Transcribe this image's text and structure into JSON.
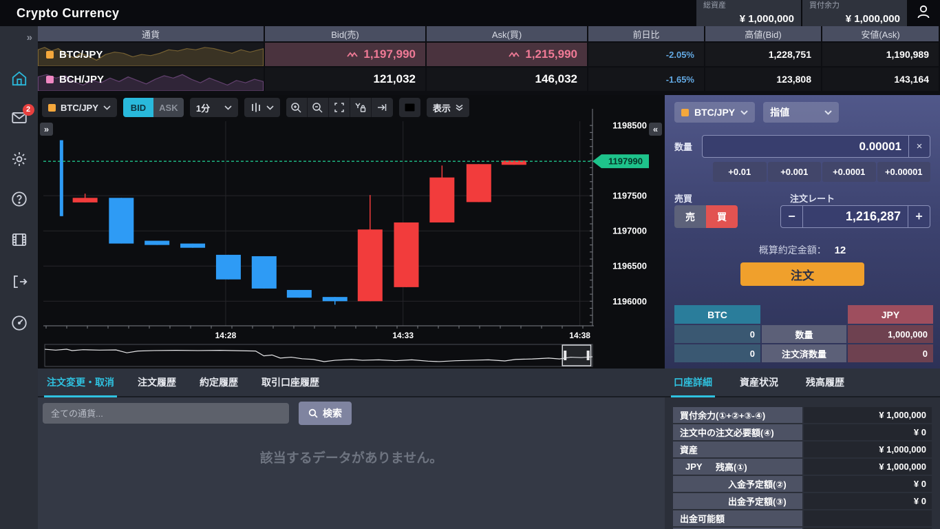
{
  "header": {
    "logo": "Crypto Currency",
    "stats": [
      {
        "label": "総資産",
        "value": "¥ 1,000,000"
      },
      {
        "label": "買付余力",
        "value": "¥ 1,000,000"
      }
    ]
  },
  "sidebar": {
    "collapse_icon": "»",
    "mail_badge": "2"
  },
  "quote_table": {
    "columns": [
      "通貨",
      "Bid(売)",
      "Ask(買)",
      "前日比",
      "高値(Bid)",
      "安値(Ask)"
    ],
    "rows": [
      {
        "pair": "BTC/JPY",
        "swatch": "#f5a83c",
        "bid": "1,197,990",
        "ask": "1,215,990",
        "change": "-2.05%",
        "high": "1,228,751",
        "low": "1,190,989"
      },
      {
        "pair": "BCH/JPY",
        "swatch": "#ef87c2",
        "bid": "121,032",
        "ask": "146,032",
        "change": "-1.65%",
        "high": "123,808",
        "low": "143,164"
      }
    ]
  },
  "chart_toolbar": {
    "pair": "BTC/JPY",
    "bid_label": "BID",
    "ask_label": "ASK",
    "interval": "1分",
    "display_label": "表示",
    "expand_icon": "»",
    "collapse_icon": "«"
  },
  "chart_data": {
    "type": "candlestick",
    "pair": "BTC/JPY",
    "interval": "1分",
    "last_price": 1197990,
    "last_price_label": "1197990",
    "y_ticks": [
      1198500,
      1197500,
      1197000,
      1196500,
      1196000
    ],
    "y_range": [
      1195650,
      1198560
    ],
    "x_labels": [
      {
        "label": "14:28",
        "pos": 0.332
      },
      {
        "label": "14:33",
        "pos": 0.655
      },
      {
        "label": "14:38",
        "pos": 0.977
      }
    ],
    "up_color": "#f23c3c",
    "down_color": "#2e9bf5",
    "accent_green": "#1ec38b",
    "candles": [
      {
        "x": 0.033,
        "top": 1198290,
        "bottom": 1197210,
        "high": 1198290,
        "low": 1197210,
        "dir": "down",
        "thin": true
      },
      {
        "x": 0.076,
        "top": 1197470,
        "bottom": 1197405,
        "high": 1197530,
        "low": 1197405,
        "dir": "up"
      },
      {
        "x": 0.142,
        "top": 1197470,
        "bottom": 1196820,
        "high": 1197470,
        "low": 1196820,
        "dir": "down"
      },
      {
        "x": 0.207,
        "top": 1196860,
        "bottom": 1196800,
        "high": 1196860,
        "low": 1196800,
        "dir": "down"
      },
      {
        "x": 0.272,
        "top": 1196820,
        "bottom": 1196760,
        "high": 1196820,
        "low": 1196760,
        "dir": "down"
      },
      {
        "x": 0.337,
        "top": 1196660,
        "bottom": 1196310,
        "high": 1196660,
        "low": 1196310,
        "dir": "down"
      },
      {
        "x": 0.402,
        "top": 1196640,
        "bottom": 1196180,
        "high": 1196640,
        "low": 1196180,
        "dir": "down"
      },
      {
        "x": 0.466,
        "top": 1196160,
        "bottom": 1196050,
        "high": 1196160,
        "low": 1196050,
        "dir": "down"
      },
      {
        "x": 0.531,
        "top": 1196060,
        "bottom": 1196000,
        "high": 1196060,
        "low": 1195950,
        "dir": "down"
      },
      {
        "x": 0.595,
        "top": 1197020,
        "bottom": 1196000,
        "high": 1197510,
        "low": 1196000,
        "dir": "up"
      },
      {
        "x": 0.661,
        "top": 1197120,
        "bottom": 1196200,
        "high": 1197120,
        "low": 1196200,
        "dir": "up"
      },
      {
        "x": 0.726,
        "top": 1197760,
        "bottom": 1197120,
        "high": 1197930,
        "low": 1197120,
        "dir": "up"
      },
      {
        "x": 0.793,
        "top": 1197950,
        "bottom": 1197410,
        "high": 1197950,
        "low": 1197410,
        "dir": "up"
      },
      {
        "x": 0.857,
        "top": 1198000,
        "bottom": 1197940,
        "high": 1198000,
        "low": 1197940,
        "dir": "up"
      }
    ],
    "navigator": {
      "points": [
        [
          0,
          0.22
        ],
        [
          0.02,
          0.26
        ],
        [
          0.04,
          0.22
        ],
        [
          0.05,
          0.28
        ],
        [
          0.07,
          0.24
        ],
        [
          0.1,
          0.26
        ],
        [
          0.13,
          0.25
        ],
        [
          0.15,
          0.38
        ],
        [
          0.17,
          0.3
        ],
        [
          0.2,
          0.28
        ],
        [
          0.24,
          0.27
        ],
        [
          0.28,
          0.28
        ],
        [
          0.32,
          0.27
        ],
        [
          0.36,
          0.29
        ],
        [
          0.385,
          0.3
        ],
        [
          0.4,
          0.52
        ],
        [
          0.415,
          0.48
        ],
        [
          0.43,
          0.62
        ],
        [
          0.45,
          0.58
        ],
        [
          0.47,
          0.65
        ],
        [
          0.49,
          0.68
        ],
        [
          0.51,
          0.78
        ],
        [
          0.53,
          0.72
        ],
        [
          0.56,
          0.68
        ],
        [
          0.58,
          0.72
        ],
        [
          0.61,
          0.7
        ],
        [
          0.64,
          0.74
        ],
        [
          0.67,
          0.7
        ],
        [
          0.7,
          0.76
        ],
        [
          0.72,
          0.78
        ],
        [
          0.75,
          0.74
        ],
        [
          0.78,
          0.72
        ],
        [
          0.81,
          0.7
        ],
        [
          0.84,
          0.75
        ],
        [
          0.86,
          0.68
        ],
        [
          0.89,
          0.66
        ],
        [
          0.92,
          0.62
        ],
        [
          0.94,
          0.66
        ],
        [
          0.96,
          0.58
        ],
        [
          0.98,
          0.6
        ],
        [
          1,
          0.56
        ]
      ],
      "slider": {
        "from": 0.945,
        "to": 0.997
      }
    }
  },
  "order_panel": {
    "pair": "BTC/JPY",
    "order_type": "指値",
    "qty_label": "数量",
    "qty_value": "0.00001",
    "clear_icon": "×",
    "increments": [
      "+0.01",
      "+0.001",
      "+0.0001",
      "+0.00001"
    ],
    "side_label": "売買",
    "sell_label": "売",
    "buy_label": "買",
    "rate_label": "注文レート",
    "rate_value": "1,216,287",
    "minus_icon": "−",
    "plus_icon": "+",
    "estimate_label": "概算約定金額：",
    "estimate_value": "12",
    "submit_label": "注文",
    "balance_table": {
      "left_header": "BTC",
      "right_header": "JPY",
      "rows": [
        {
          "left": "0",
          "label": "数量",
          "right": "1,000,000"
        },
        {
          "left": "0",
          "label": "注文済数量",
          "right": "0"
        }
      ]
    }
  },
  "history_panel": {
    "tabs": [
      "注文変更・取消",
      "注文履歴",
      "約定履歴",
      "取引口座履歴"
    ],
    "search_placeholder": "全ての通貨...",
    "search_button": "検索",
    "empty_message": "該当するデータがありません。"
  },
  "account_panel": {
    "tabs": [
      "口座詳細",
      "資産状況",
      "残高履歴"
    ],
    "rows": [
      {
        "label": "買付余力(①+②+③-④)",
        "value": "¥ 1,000,000"
      },
      {
        "label": "注文中の注文必要額(④)",
        "value": "¥ 0"
      },
      {
        "label": "資産",
        "value": "¥ 1,000,000"
      },
      {
        "prefix": "JPY",
        "label": "残高(①)",
        "value": "¥ 1,000,000"
      },
      {
        "label": "入金予定額(②)",
        "value": "¥ 0"
      },
      {
        "label": "出金予定額(③)",
        "value": "¥ 0"
      },
      {
        "label": "出金可能額",
        "value": ""
      }
    ]
  }
}
